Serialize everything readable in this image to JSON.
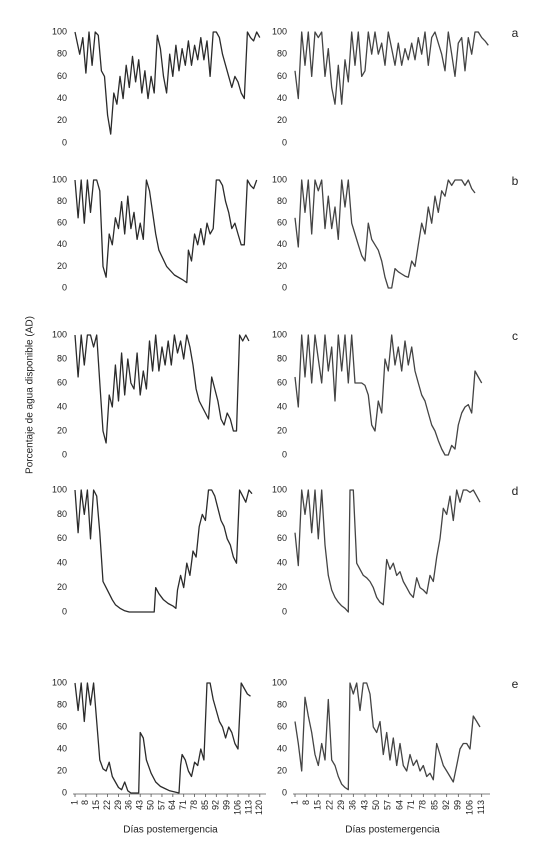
{
  "chart_data": [
    {
      "type": "line",
      "color": "#2b2b2b",
      "xlim": [
        1,
        124
      ],
      "ylim": [
        0,
        100
      ],
      "yticks": [
        0,
        20,
        40,
        60,
        80,
        100
      ],
      "x": [
        1,
        4,
        6,
        8,
        10,
        12,
        14,
        16,
        18,
        20,
        22,
        24,
        26,
        28,
        30,
        32,
        34,
        36,
        38,
        40,
        42,
        44,
        46,
        48,
        50,
        52,
        54,
        56,
        58,
        60,
        62,
        64,
        66,
        68,
        70,
        72,
        74,
        76,
        78,
        80,
        82,
        84,
        86,
        88,
        90,
        92,
        94,
        96,
        98,
        100,
        102,
        104,
        106,
        108,
        110,
        112,
        114,
        116,
        118,
        120
      ],
      "values": [
        100,
        80,
        95,
        63,
        100,
        70,
        100,
        97,
        65,
        60,
        25,
        8,
        45,
        35,
        60,
        40,
        70,
        50,
        78,
        55,
        75,
        45,
        65,
        40,
        60,
        45,
        97,
        85,
        60,
        45,
        80,
        60,
        88,
        65,
        85,
        70,
        92,
        70,
        88,
        75,
        95,
        75,
        92,
        60,
        100,
        100,
        95,
        80,
        70,
        60,
        50,
        60,
        55,
        45,
        40,
        100,
        95,
        92,
        100,
        95
      ]
    },
    {
      "type": "line",
      "color": "#444444",
      "panel_label": "a",
      "xlim": [
        1,
        118
      ],
      "ylim": [
        0,
        100
      ],
      "yticks": [
        0,
        20,
        40,
        60,
        80,
        100
      ],
      "x": [
        1,
        3,
        5,
        7,
        9,
        11,
        13,
        15,
        17,
        19,
        21,
        23,
        25,
        27,
        29,
        31,
        33,
        35,
        37,
        39,
        41,
        43,
        45,
        47,
        49,
        51,
        53,
        55,
        57,
        59,
        61,
        63,
        65,
        67,
        69,
        71,
        73,
        75,
        77,
        79,
        81,
        83,
        85,
        87,
        89,
        91,
        93,
        95,
        97,
        99,
        101,
        103,
        105,
        107,
        109,
        111,
        113,
        115,
        117
      ],
      "values": [
        65,
        40,
        100,
        70,
        100,
        60,
        100,
        95,
        100,
        60,
        85,
        50,
        35,
        70,
        35,
        75,
        55,
        100,
        70,
        100,
        60,
        65,
        100,
        80,
        100,
        80,
        90,
        70,
        100,
        85,
        70,
        90,
        70,
        85,
        75,
        90,
        75,
        95,
        80,
        100,
        70,
        95,
        100,
        90,
        80,
        65,
        100,
        80,
        60,
        90,
        95,
        65,
        95,
        80,
        100,
        100,
        95,
        92,
        88
      ]
    },
    {
      "type": "line",
      "color": "#2b2b2b",
      "xlim": [
        1,
        124
      ],
      "ylim": [
        0,
        100
      ],
      "yticks": [
        0,
        20,
        40,
        60,
        80,
        100
      ],
      "x": [
        1,
        3,
        5,
        7,
        9,
        11,
        13,
        15,
        17,
        19,
        21,
        23,
        25,
        27,
        29,
        31,
        33,
        35,
        37,
        39,
        41,
        43,
        45,
        47,
        49,
        51,
        53,
        55,
        60,
        65,
        70,
        73,
        74,
        76,
        78,
        80,
        82,
        84,
        86,
        88,
        90,
        92,
        94,
        96,
        98,
        100,
        102,
        104,
        106,
        108,
        110,
        112,
        114,
        116,
        118
      ],
      "values": [
        100,
        65,
        100,
        60,
        100,
        70,
        100,
        100,
        90,
        20,
        10,
        50,
        40,
        65,
        55,
        80,
        50,
        85,
        55,
        70,
        45,
        60,
        45,
        100,
        90,
        70,
        50,
        35,
        20,
        12,
        8,
        5,
        35,
        25,
        50,
        40,
        55,
        40,
        60,
        50,
        55,
        100,
        100,
        95,
        80,
        70,
        55,
        60,
        50,
        40,
        40,
        100,
        95,
        92,
        100
      ]
    },
    {
      "type": "line",
      "color": "#444444",
      "panel_label": "b",
      "xlim": [
        1,
        118
      ],
      "ylim": [
        0,
        100
      ],
      "yticks": [
        0,
        20,
        40,
        60,
        80,
        100
      ],
      "x": [
        1,
        3,
        5,
        7,
        9,
        11,
        13,
        15,
        17,
        19,
        21,
        23,
        25,
        27,
        29,
        31,
        33,
        35,
        37,
        39,
        41,
        43,
        45,
        47,
        49,
        51,
        53,
        55,
        57,
        59,
        61,
        63,
        65,
        67,
        69,
        71,
        73,
        75,
        77,
        79,
        81,
        83,
        85,
        87,
        89,
        91,
        93,
        95,
        97,
        99,
        101,
        103,
        105,
        107,
        109
      ],
      "values": [
        65,
        38,
        100,
        70,
        100,
        50,
        100,
        90,
        100,
        55,
        85,
        55,
        75,
        45,
        100,
        75,
        100,
        60,
        50,
        40,
        30,
        25,
        60,
        45,
        40,
        35,
        25,
        10,
        0,
        0,
        18,
        15,
        13,
        11,
        10,
        25,
        20,
        40,
        60,
        50,
        75,
        60,
        85,
        70,
        90,
        85,
        100,
        95,
        100,
        100,
        100,
        95,
        100,
        92,
        88
      ]
    },
    {
      "type": "line",
      "color": "#2b2b2b",
      "ylabel": "Porcentaje de agua disponible (AD)",
      "xlim": [
        1,
        124
      ],
      "ylim": [
        0,
        100
      ],
      "yticks": [
        0,
        20,
        40,
        60,
        80,
        100
      ],
      "x": [
        1,
        3,
        5,
        7,
        9,
        11,
        13,
        15,
        17,
        19,
        21,
        23,
        25,
        27,
        29,
        31,
        33,
        35,
        37,
        39,
        41,
        43,
        45,
        47,
        49,
        51,
        53,
        55,
        57,
        59,
        61,
        63,
        65,
        67,
        69,
        71,
        73,
        75,
        77,
        79,
        81,
        83,
        85,
        87,
        89,
        91,
        93,
        95,
        97,
        99,
        101,
        103,
        105,
        107,
        109,
        111,
        113
      ],
      "values": [
        100,
        65,
        100,
        75,
        100,
        100,
        90,
        100,
        60,
        20,
        10,
        50,
        40,
        75,
        45,
        85,
        50,
        80,
        60,
        55,
        85,
        50,
        70,
        55,
        95,
        70,
        100,
        70,
        90,
        75,
        95,
        75,
        100,
        85,
        95,
        80,
        100,
        90,
        75,
        55,
        45,
        40,
        35,
        30,
        65,
        55,
        45,
        30,
        25,
        35,
        30,
        20,
        20,
        100,
        95,
        100,
        95
      ]
    },
    {
      "type": "line",
      "color": "#444444",
      "panel_label": "c",
      "xlim": [
        1,
        118
      ],
      "ylim": [
        0,
        100
      ],
      "yticks": [
        0,
        20,
        40,
        60,
        80,
        100
      ],
      "x": [
        1,
        3,
        5,
        7,
        9,
        11,
        13,
        15,
        17,
        19,
        21,
        23,
        25,
        27,
        29,
        31,
        33,
        35,
        37,
        41,
        43,
        45,
        47,
        49,
        51,
        53,
        55,
        57,
        59,
        61,
        63,
        65,
        67,
        69,
        71,
        73,
        75,
        77,
        79,
        81,
        83,
        85,
        87,
        89,
        91,
        93,
        95,
        97,
        99,
        101,
        103,
        105,
        107,
        109,
        111,
        113
      ],
      "values": [
        65,
        40,
        100,
        65,
        100,
        60,
        100,
        80,
        60,
        100,
        70,
        90,
        45,
        100,
        70,
        100,
        60,
        100,
        60,
        60,
        58,
        50,
        25,
        20,
        45,
        35,
        80,
        70,
        100,
        75,
        90,
        70,
        95,
        75,
        90,
        70,
        60,
        50,
        45,
        35,
        25,
        20,
        12,
        5,
        0,
        0,
        8,
        5,
        25,
        35,
        40,
        42,
        35,
        70,
        65,
        60
      ]
    },
    {
      "type": "line",
      "color": "#2b2b2b",
      "xlim": [
        1,
        124
      ],
      "ylim": [
        0,
        100
      ],
      "yticks": [
        0,
        20,
        40,
        60,
        80,
        100
      ],
      "x": [
        1,
        3,
        5,
        7,
        9,
        11,
        13,
        15,
        17,
        19,
        21,
        23,
        25,
        27,
        30,
        33,
        36,
        50,
        52,
        53,
        55,
        58,
        61,
        64,
        66,
        67,
        69,
        71,
        73,
        75,
        77,
        79,
        81,
        83,
        85,
        87,
        89,
        91,
        93,
        95,
        97,
        99,
        101,
        103,
        105,
        107,
        109,
        111,
        113,
        115
      ],
      "values": [
        100,
        65,
        100,
        80,
        100,
        60,
        100,
        95,
        65,
        25,
        20,
        15,
        10,
        6,
        3,
        1,
        0,
        0,
        0,
        20,
        15,
        10,
        7,
        5,
        3,
        18,
        30,
        20,
        40,
        30,
        50,
        45,
        70,
        80,
        75,
        100,
        100,
        95,
        85,
        75,
        70,
        60,
        55,
        45,
        40,
        100,
        95,
        90,
        100,
        97
      ]
    },
    {
      "type": "line",
      "color": "#444444",
      "panel_label": "d",
      "xlim": [
        1,
        118
      ],
      "ylim": [
        0,
        100
      ],
      "yticks": [
        0,
        20,
        40,
        60,
        80,
        100
      ],
      "x": [
        1,
        3,
        5,
        7,
        9,
        11,
        13,
        15,
        17,
        19,
        21,
        23,
        25,
        27,
        29,
        31,
        33,
        34,
        36,
        38,
        40,
        42,
        44,
        46,
        48,
        50,
        52,
        54,
        56,
        58,
        60,
        62,
        64,
        66,
        68,
        70,
        72,
        74,
        76,
        78,
        80,
        82,
        84,
        86,
        88,
        90,
        92,
        94,
        96,
        98,
        100,
        102,
        104,
        106,
        108,
        110,
        112
      ],
      "values": [
        65,
        38,
        100,
        80,
        100,
        65,
        100,
        60,
        100,
        55,
        30,
        18,
        12,
        8,
        5,
        3,
        0,
        100,
        100,
        40,
        35,
        30,
        28,
        25,
        20,
        12,
        8,
        6,
        43,
        35,
        40,
        30,
        33,
        25,
        20,
        15,
        12,
        28,
        20,
        18,
        15,
        30,
        25,
        45,
        60,
        85,
        80,
        95,
        75,
        100,
        90,
        100,
        100,
        98,
        100,
        95,
        90
      ]
    },
    {
      "type": "line",
      "color": "#2b2b2b",
      "xlabel": "Días postemergencia",
      "xlim": [
        1,
        124
      ],
      "ylim": [
        0,
        100
      ],
      "yticks": [
        0,
        20,
        40,
        60,
        80,
        100
      ],
      "xticks": [
        1,
        8,
        15,
        22,
        29,
        36,
        43,
        50,
        57,
        64,
        71,
        78,
        85,
        92,
        99,
        106,
        113,
        120
      ],
      "x": [
        1,
        3,
        5,
        7,
        9,
        11,
        13,
        15,
        17,
        19,
        21,
        23,
        25,
        27,
        29,
        31,
        33,
        35,
        37,
        40,
        42,
        43,
        45,
        47,
        50,
        53,
        56,
        59,
        62,
        65,
        68,
        69,
        70,
        72,
        74,
        76,
        78,
        80,
        82,
        84,
        86,
        88,
        90,
        92,
        94,
        96,
        98,
        100,
        102,
        104,
        106,
        108,
        110,
        112,
        114
      ],
      "values": [
        100,
        75,
        100,
        65,
        100,
        80,
        100,
        65,
        30,
        22,
        20,
        28,
        15,
        10,
        5,
        3,
        10,
        2,
        0,
        0,
        0,
        55,
        50,
        30,
        18,
        10,
        6,
        4,
        2,
        1,
        0,
        25,
        35,
        30,
        20,
        15,
        28,
        25,
        40,
        30,
        100,
        100,
        85,
        75,
        65,
        60,
        50,
        60,
        55,
        45,
        40,
        100,
        95,
        90,
        88
      ]
    },
    {
      "type": "line",
      "color": "#444444",
      "panel_label": "e",
      "xlabel": "Días postemergencia",
      "xlim": [
        1,
        118
      ],
      "ylim": [
        0,
        100
      ],
      "yticks": [
        0,
        20,
        40,
        60,
        80,
        100
      ],
      "xticks": [
        1,
        8,
        15,
        22,
        29,
        36,
        43,
        50,
        57,
        64,
        71,
        78,
        85,
        92,
        99,
        106,
        113
      ],
      "x": [
        1,
        3,
        5,
        7,
        9,
        11,
        13,
        15,
        17,
        19,
        21,
        23,
        25,
        27,
        29,
        31,
        33,
        34,
        36,
        38,
        40,
        42,
        44,
        46,
        48,
        50,
        52,
        54,
        56,
        58,
        60,
        62,
        64,
        66,
        68,
        70,
        72,
        74,
        76,
        78,
        80,
        82,
        84,
        86,
        88,
        90,
        92,
        94,
        96,
        98,
        100,
        102,
        104,
        106,
        108,
        110,
        112
      ],
      "values": [
        65,
        45,
        20,
        87,
        70,
        55,
        35,
        25,
        45,
        30,
        85,
        30,
        25,
        15,
        8,
        5,
        3,
        100,
        90,
        100,
        75,
        100,
        100,
        90,
        60,
        55,
        65,
        35,
        55,
        30,
        50,
        25,
        45,
        25,
        20,
        35,
        25,
        30,
        20,
        25,
        15,
        18,
        12,
        45,
        35,
        25,
        20,
        15,
        10,
        25,
        40,
        45,
        45,
        40,
        70,
        65,
        60
      ]
    }
  ]
}
